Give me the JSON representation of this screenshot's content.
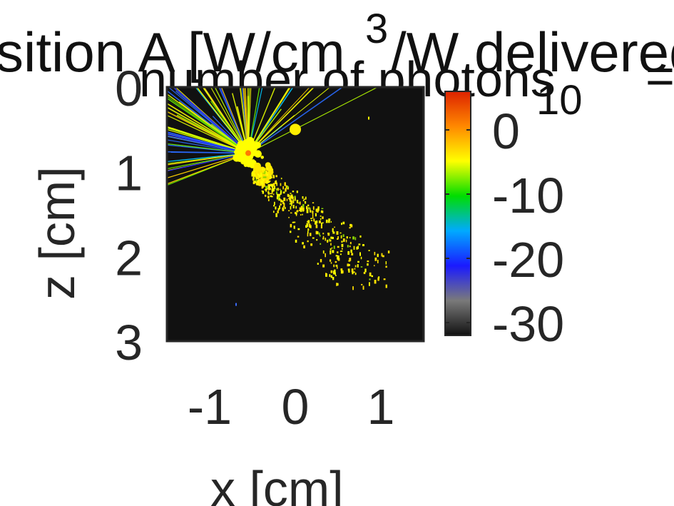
{
  "chart_data": {
    "type": "heatmap",
    "title_line1": "sition A [W/cm",
    "title_line1_sup": "3",
    "title_line1_rest": "/W delivered",
    "title_line2": "number of photons",
    "title_line2_tail": "=",
    "title_overlap": "Position A",
    "colorbar_exponent": "10",
    "xlabel": "x [cm]",
    "ylabel": "z [cm]",
    "xlim": [
      -1.5,
      1.5
    ],
    "ylim": [
      0,
      3
    ],
    "x_ticks": [
      "-1",
      "0",
      "1"
    ],
    "y_ticks": [
      "0",
      "1",
      "2",
      "3"
    ],
    "colorbar_ticks": [
      "0",
      "-10",
      "-20",
      "-30"
    ],
    "colorbar_range": [
      -32,
      6
    ],
    "colormap_stops": [
      "#111111",
      "#7a7a7a",
      "#1a1aff",
      "#00aaff",
      "#00dd00",
      "#ffff00",
      "#ff8800",
      "#dd2200"
    ],
    "background_color": "#111111",
    "source_point": {
      "x": -0.55,
      "z": 0.78
    },
    "detector_point": {
      "x": 0.0,
      "z": 0.5
    },
    "grid": false
  }
}
